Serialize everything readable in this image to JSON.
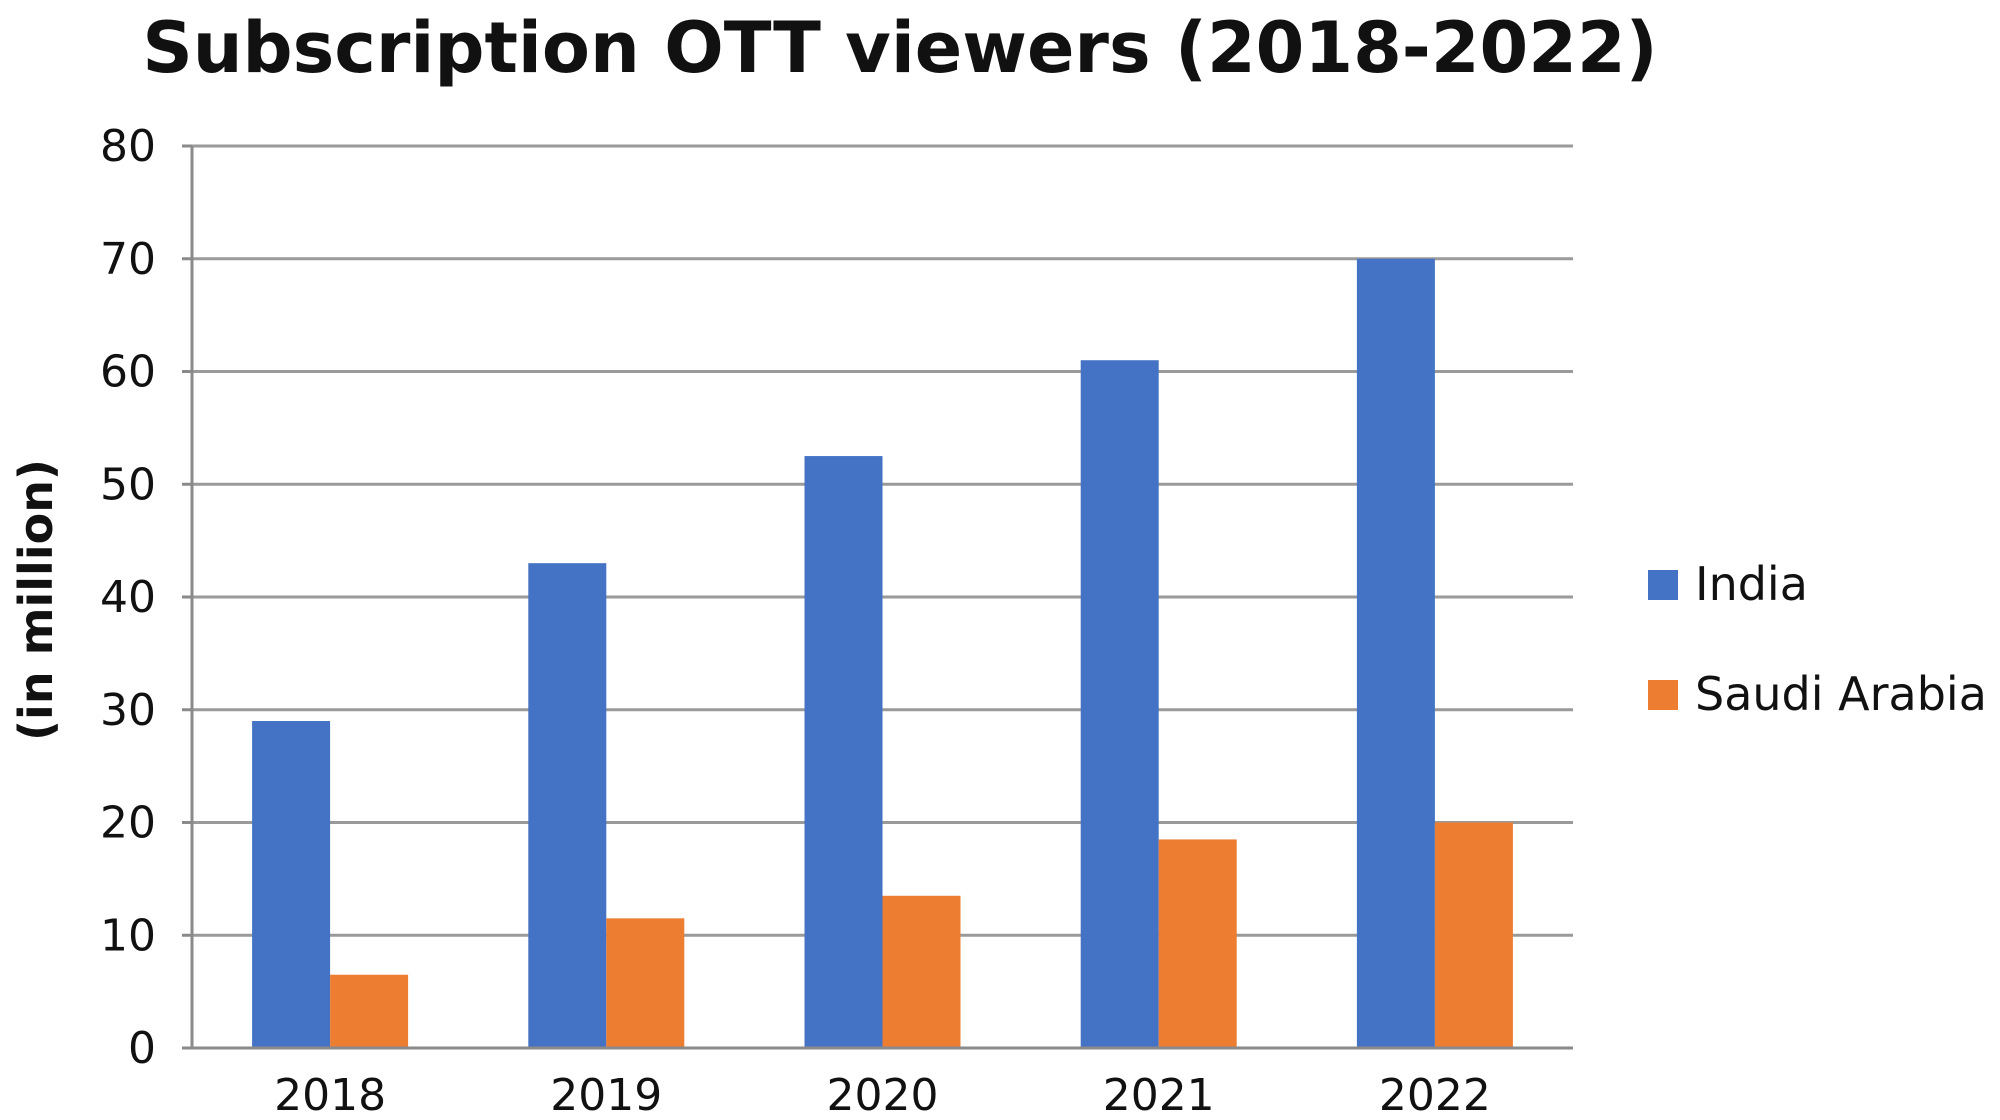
{
  "chart_data": {
    "type": "bar",
    "title": "Subscription OTT viewers (2018-2022)",
    "xlabel": "",
    "ylabel": "(in million)",
    "categories": [
      "2018",
      "2019",
      "2020",
      "2021",
      "2022"
    ],
    "series": [
      {
        "name": "India",
        "values": [
          29,
          43,
          52.5,
          61,
          70
        ],
        "color": "#4472C4"
      },
      {
        "name": "Saudi Arabia",
        "values": [
          6.5,
          11.5,
          13.5,
          18.5,
          20
        ],
        "color": "#ED7D31"
      }
    ],
    "ylim": [
      0,
      80
    ],
    "yticks": [
      0,
      10,
      20,
      30,
      40,
      50,
      60,
      70,
      80
    ],
    "grid": true,
    "legend_position": "right"
  }
}
